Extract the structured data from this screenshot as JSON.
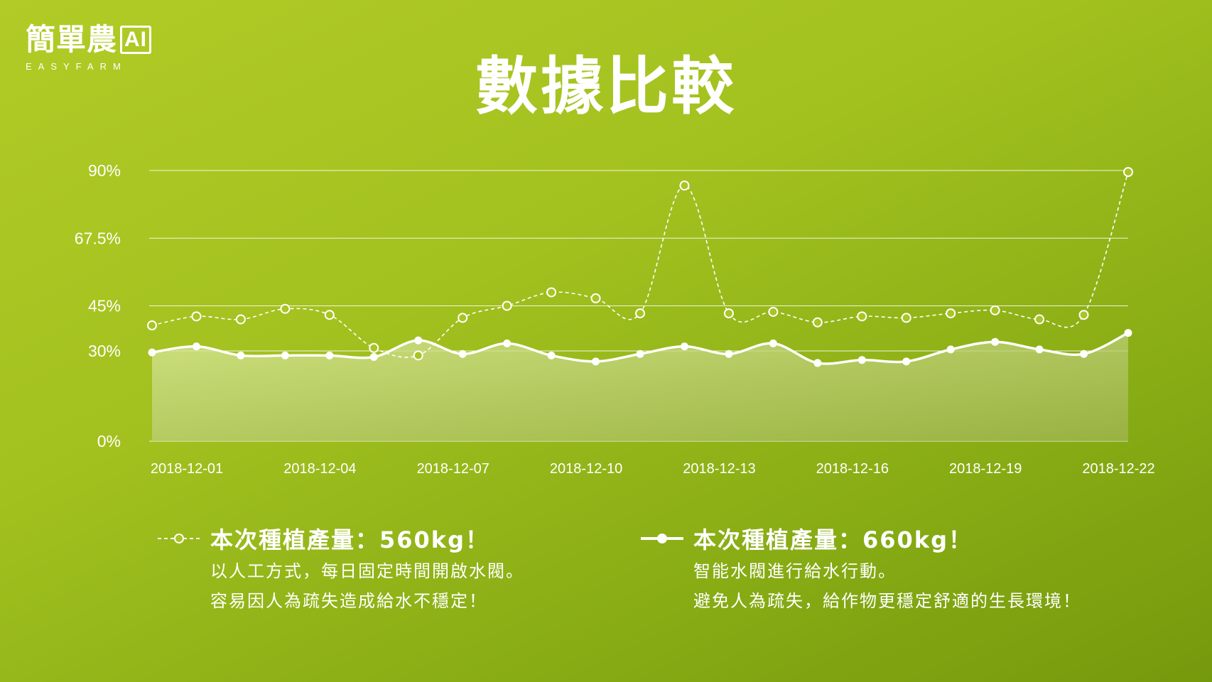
{
  "logo": {
    "name": "簡單農",
    "ai": "AI",
    "subtitle": "EASYFARM"
  },
  "title": "數據比較",
  "chart_data": {
    "type": "line",
    "title": "數據比較",
    "xlabel": "",
    "ylabel": "",
    "ylim": [
      0,
      90
    ],
    "y_ticks": [
      0,
      30,
      45,
      67.5,
      90
    ],
    "y_tick_labels": [
      "0%",
      "30%",
      "45%",
      "67.5%",
      "90%"
    ],
    "x": [
      "2018-12-01",
      "2018-12-02",
      "2018-12-03",
      "2018-12-04",
      "2018-12-05",
      "2018-12-06",
      "2018-12-07",
      "2018-12-08",
      "2018-12-09",
      "2018-12-10",
      "2018-12-11",
      "2018-12-12",
      "2018-12-13",
      "2018-12-14",
      "2018-12-15",
      "2018-12-16",
      "2018-12-17",
      "2018-12-18",
      "2018-12-19",
      "2018-12-20",
      "2018-12-21",
      "2018-12-22",
      "2018-12-23"
    ],
    "x_tick_labels": [
      "2018-12-01",
      "2018-12-04",
      "2018-12-07",
      "2018-12-10",
      "2018-12-13",
      "2018-12-16",
      "2018-12-19",
      "2018-12-22"
    ],
    "grid": true,
    "series": [
      {
        "style": "dashed-hollow",
        "values": [
          38.5,
          41.5,
          40.5,
          44,
          42,
          31,
          28.5,
          41,
          45,
          49.5,
          47.5,
          42.5,
          85,
          42.5,
          43,
          39.5,
          41.5,
          41,
          42.5,
          43.5,
          40.5,
          42,
          89.5
        ]
      },
      {
        "style": "solid-filled",
        "values": [
          29.5,
          31.5,
          28.5,
          28.5,
          28.5,
          28,
          33.5,
          29,
          32.5,
          28.5,
          26.5,
          29,
          31.5,
          29,
          32.5,
          26,
          27,
          26.5,
          30.5,
          33,
          30.5,
          29,
          36
        ]
      }
    ]
  },
  "legend": [
    {
      "title": "本次種植產量：560kg！",
      "lines": [
        "以人工方式，每日固定時間開啟水閥。",
        "容易因人為疏失造成給水不穩定！"
      ]
    },
    {
      "title": "本次種植產量：660kg！",
      "lines": [
        "智能水閥進行給水行動。",
        "避免人為疏失，給作物更穩定舒適的生長環境！"
      ]
    }
  ],
  "colors": {
    "line": "#ffffff",
    "area_top": "#d3e38c",
    "area_bottom": "#a9bf56",
    "background": "#a2c11f"
  }
}
